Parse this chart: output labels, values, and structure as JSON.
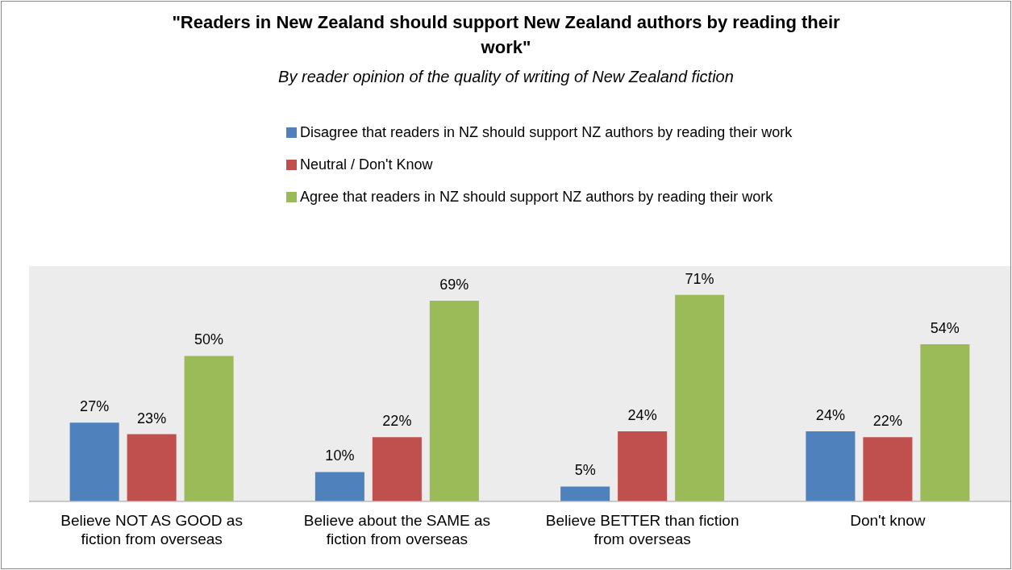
{
  "chart_data": {
    "type": "bar",
    "title": "\"Readers in New Zealand should support New Zealand authors by reading their work\"",
    "subtitle": "By reader opinion of the quality of writing of New Zealand fiction",
    "categories": [
      "Believe NOT AS GOOD as fiction from overseas",
      "Believe about the SAME as fiction from overseas",
      "Believe BETTER than fiction from overseas",
      "Don't know"
    ],
    "series": [
      {
        "name": "Disagree that readers in NZ should support NZ authors by reading their work",
        "color": "#4f81bd",
        "values": [
          27,
          10,
          5,
          24
        ],
        "value_labels": [
          "27%",
          "10%",
          "5%",
          "24%"
        ]
      },
      {
        "name": "Neutral / Don't Know",
        "color": "#c0504d",
        "values": [
          23,
          22,
          24,
          22
        ],
        "value_labels": [
          "23%",
          "22%",
          "24%",
          "22%"
        ]
      },
      {
        "name": "Agree that readers in NZ should support NZ authors by reading their work",
        "color": "#9bbb59",
        "values": [
          50,
          69,
          71,
          54
        ],
        "value_labels": [
          "50%",
          "69%",
          "71%",
          "54%"
        ]
      }
    ],
    "legend": "top",
    "grid": false
  }
}
